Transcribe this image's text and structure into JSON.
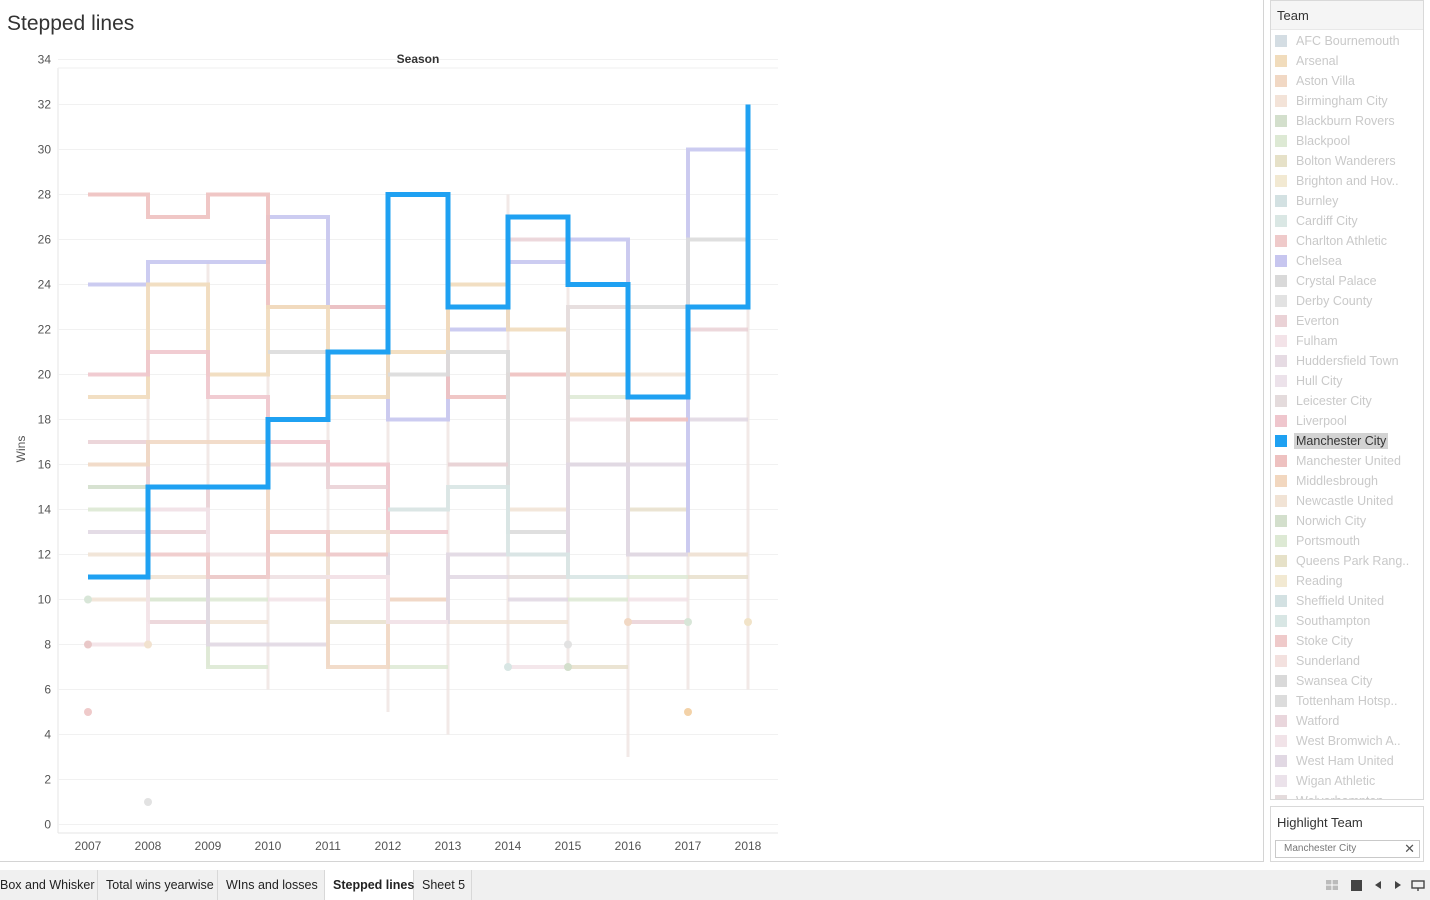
{
  "sheet": {
    "title": "Stepped lines"
  },
  "chart_data": {
    "type": "line",
    "subtype": "stepped",
    "column_header": "Season",
    "ylabel": "Wins",
    "xlabel": "",
    "x": [
      "2007",
      "2008",
      "2009",
      "2010",
      "2011",
      "2012",
      "2013",
      "2014",
      "2015",
      "2016",
      "2017",
      "2018"
    ],
    "y_ticks": [
      0,
      2,
      4,
      6,
      8,
      10,
      12,
      14,
      16,
      18,
      20,
      22,
      24,
      26,
      28,
      30,
      32,
      34
    ],
    "ylim": [
      0,
      34
    ],
    "grid": "horizontal",
    "highlighted_series": "Manchester City",
    "series": [
      {
        "name": "Manchester City",
        "color": "#1fa1f2",
        "highlight": true,
        "values": [
          11,
          15,
          15,
          18,
          21,
          28,
          23,
          27,
          24,
          19,
          23,
          32
        ]
      },
      {
        "name": "Chelsea",
        "color": "#c7c6ef",
        "values": [
          24,
          25,
          25,
          27,
          23,
          18,
          22,
          25,
          26,
          12,
          30,
          null
        ]
      },
      {
        "name": "Manchester United",
        "color": "#eec1c0",
        "values": [
          28,
          27,
          28,
          23,
          23,
          28,
          19,
          20,
          20,
          18,
          null,
          null
        ]
      },
      {
        "name": "Arsenal",
        "color": "#f1dcbc",
        "values": [
          19,
          24,
          20,
          23,
          19,
          21,
          24,
          22,
          20,
          null,
          null,
          null
        ]
      },
      {
        "name": "Liverpool",
        "color": "#efc6cd",
        "values": [
          20,
          21,
          19,
          17,
          16,
          13,
          null,
          null,
          null,
          null,
          null,
          null
        ]
      },
      {
        "name": "Tottenham Hotspur",
        "color": "#dcdcdc",
        "values": [
          null,
          null,
          null,
          21,
          null,
          20,
          21,
          13,
          16,
          23,
          26,
          null
        ]
      },
      {
        "name": "Everton",
        "color": "#ead2d6",
        "values": [
          17,
          13,
          15,
          16,
          15,
          null,
          16,
          null,
          null,
          null,
          null,
          null
        ]
      },
      {
        "name": "Aston Villa",
        "color": "#f1d8c4",
        "values": [
          16,
          17,
          17,
          12,
          7,
          10,
          null,
          null,
          null,
          null,
          null,
          null
        ]
      },
      {
        "name": "Leicester City",
        "color": "#e4dbdc",
        "values": [
          null,
          null,
          null,
          null,
          null,
          null,
          null,
          11,
          23,
          12,
          12,
          null
        ]
      },
      {
        "name": "Newcastle United",
        "color": "#f1e3d5",
        "values": [
          12,
          11,
          null,
          11,
          13,
          9,
          null,
          9,
          null,
          null,
          12,
          null
        ]
      },
      {
        "name": "Blackburn Rovers",
        "color": "#d3dfcc",
        "values": [
          15,
          10,
          11,
          11,
          null,
          null,
          null,
          null,
          null,
          null,
          null,
          null
        ]
      },
      {
        "name": "Portsmouth",
        "color": "#dde9d4",
        "values": [
          14,
          10,
          7,
          null,
          null,
          null,
          null,
          null,
          null,
          null,
          null,
          null
        ]
      },
      {
        "name": "West Ham United",
        "color": "#e1d8e3",
        "values": [
          13,
          14,
          8,
          null,
          12,
          9,
          12,
          12,
          16,
          12,
          null,
          null
        ]
      },
      {
        "name": "Fulham",
        "color": "#f3e3e8",
        "values": [
          8,
          14,
          12,
          11,
          11,
          9,
          null,
          null,
          null,
          null,
          null,
          null
        ]
      },
      {
        "name": "Stoke City",
        "color": "#efcaca",
        "values": [
          null,
          12,
          11,
          13,
          12,
          null,
          null,
          null,
          null,
          null,
          null,
          null
        ]
      },
      {
        "name": "Southampton",
        "color": "#d8e6e4",
        "values": [
          null,
          null,
          null,
          null,
          null,
          14,
          15,
          12,
          11,
          null,
          null,
          null
        ]
      }
    ],
    "markers": [
      {
        "season": "2007",
        "value": 10,
        "color": "#d8e6d8"
      },
      {
        "season": "2007",
        "value": 8,
        "color": "#e9c8c8"
      },
      {
        "season": "2007",
        "value": 5,
        "color": "#efcaca"
      },
      {
        "season": "2008",
        "value": 8,
        "color": "#f2e2cf"
      },
      {
        "season": "2008",
        "value": 1,
        "color": "#e2e2e2"
      },
      {
        "season": "2014",
        "value": 7,
        "color": "#d8e6e4"
      },
      {
        "season": "2015",
        "value": 7,
        "color": "#d3dfcc"
      },
      {
        "season": "2015",
        "value": 8,
        "color": "#e2e2e2"
      },
      {
        "season": "2016",
        "value": 9,
        "color": "#f1d8c4"
      },
      {
        "season": "2017",
        "value": 9,
        "color": "#d8e6d8"
      },
      {
        "season": "2017",
        "value": 5,
        "color": "#f3d2a8"
      },
      {
        "season": "2018",
        "value": 9,
        "color": "#f1e3c8"
      }
    ],
    "noise_segments": [
      {
        "x": [
          "2007",
          "2008"
        ],
        "v": 11
      },
      {
        "x": [
          "2008",
          "2009"
        ],
        "v": 10
      },
      {
        "x": [
          "2009",
          "2010"
        ],
        "v": 10
      },
      {
        "x": [
          "2010",
          "2011"
        ],
        "v": 10
      },
      {
        "x": [
          "2011",
          "2012"
        ],
        "v": 9
      },
      {
        "x": [
          "2012",
          "2013"
        ],
        "v": 10
      },
      {
        "x": [
          "2013",
          "2014"
        ],
        "v": 9
      },
      {
        "x": [
          "2014",
          "2015"
        ],
        "v": 10
      },
      {
        "x": [
          "2015",
          "2016"
        ],
        "v": 10
      },
      {
        "x": [
          "2016",
          "2017"
        ],
        "v": 10
      },
      {
        "x": [
          "2017",
          "2018"
        ],
        "v": 11
      },
      {
        "x": [
          "2008",
          "2009"
        ],
        "v": 9
      },
      {
        "x": [
          "2009",
          "2010"
        ],
        "v": 9
      },
      {
        "x": [
          "2010",
          "2011"
        ],
        "v": 8
      },
      {
        "x": [
          "2012",
          "2013"
        ],
        "v": 7
      },
      {
        "x": [
          "2014",
          "2015"
        ],
        "v": 7
      },
      {
        "x": [
          "2015",
          "2016"
        ],
        "v": 7
      },
      {
        "x": [
          "2016",
          "2017"
        ],
        "v": 9
      },
      {
        "x": [
          "2007",
          "2008"
        ],
        "v": 10
      },
      {
        "x": [
          "2013",
          "2014"
        ],
        "v": 11
      },
      {
        "x": [
          "2016",
          "2017"
        ],
        "v": 11
      },
      {
        "x": [
          "2017",
          "2018"
        ],
        "v": 12
      },
      {
        "x": [
          "2009",
          "2010"
        ],
        "v": 12
      },
      {
        "x": [
          "2011",
          "2012"
        ],
        "v": 11
      },
      {
        "x": [
          "2014",
          "2015"
        ],
        "v": 14
      },
      {
        "x": [
          "2016",
          "2017"
        ],
        "v": 16
      },
      {
        "x": [
          "2013",
          "2014"
        ],
        "v": 16
      },
      {
        "x": [
          "2015",
          "2016"
        ],
        "v": 18
      },
      {
        "x": [
          "2016",
          "2017"
        ],
        "v": 14
      },
      {
        "x": [
          "2017",
          "2018"
        ],
        "v": 22
      },
      {
        "x": [
          "2016",
          "2017"
        ],
        "v": 20
      },
      {
        "x": [
          "2017",
          "2018"
        ],
        "v": 18
      },
      {
        "x": [
          "2015",
          "2016"
        ],
        "v": 19
      },
      {
        "x": [
          "2012",
          "2013"
        ],
        "v": 14
      },
      {
        "x": [
          "2011",
          "2012"
        ],
        "v": 13
      },
      {
        "x": [
          "2014",
          "2015"
        ],
        "v": 26
      }
    ],
    "noise_verticals": [
      {
        "x": "2008",
        "from": 24,
        "to": 9
      },
      {
        "x": "2009",
        "from": 25,
        "to": 7
      },
      {
        "x": "2010",
        "from": 28,
        "to": 6
      },
      {
        "x": "2011",
        "from": 27,
        "to": 7
      },
      {
        "x": "2012",
        "from": 23,
        "to": 5
      },
      {
        "x": "2013",
        "from": 28,
        "to": 4
      },
      {
        "x": "2014",
        "from": 28,
        "to": 7
      },
      {
        "x": "2015",
        "from": 26,
        "to": 7
      },
      {
        "x": "2016",
        "from": 26,
        "to": 3
      },
      {
        "x": "2017",
        "from": 30,
        "to": 6
      },
      {
        "x": "2018",
        "from": 26,
        "to": 6
      }
    ]
  },
  "legend": {
    "title": "Team",
    "items": [
      {
        "label": "AFC Bournemouth",
        "color": "#d4dde3"
      },
      {
        "label": "Arsenal",
        "color": "#f1dcbc"
      },
      {
        "label": "Aston Villa",
        "color": "#f1d8c4"
      },
      {
        "label": "Birmingham City",
        "color": "#f3e3d8"
      },
      {
        "label": "Blackburn Rovers",
        "color": "#d3dfcc"
      },
      {
        "label": "Blackpool",
        "color": "#dde9d4"
      },
      {
        "label": "Bolton Wanderers",
        "color": "#e6e1c8"
      },
      {
        "label": "Brighton and Hov..",
        "color": "#f2e9d2"
      },
      {
        "label": "Burnley",
        "color": "#d3e1e2"
      },
      {
        "label": "Cardiff City",
        "color": "#dae7e4"
      },
      {
        "label": "Charlton Athletic",
        "color": "#efcaca"
      },
      {
        "label": "Chelsea",
        "color": "#c7c6ef"
      },
      {
        "label": "Crystal Palace",
        "color": "#d9d9d9"
      },
      {
        "label": "Derby County",
        "color": "#e2e2e2"
      },
      {
        "label": "Everton",
        "color": "#ead2d6"
      },
      {
        "label": "Fulham",
        "color": "#f3e3e8"
      },
      {
        "label": "Huddersfield Town",
        "color": "#e6dbe3"
      },
      {
        "label": "Hull City",
        "color": "#ece2ea"
      },
      {
        "label": "Leicester City",
        "color": "#e4dbdc"
      },
      {
        "label": "Liverpool",
        "color": "#efc6cd"
      },
      {
        "label": "Manchester City",
        "color": "#1fa1f2",
        "active": true
      },
      {
        "label": "Manchester United",
        "color": "#eec1c0"
      },
      {
        "label": "Middlesbrough",
        "color": "#f2d7bf"
      },
      {
        "label": "Newcastle United",
        "color": "#f1e3d5"
      },
      {
        "label": "Norwich City",
        "color": "#d3dfcc"
      },
      {
        "label": "Portsmouth",
        "color": "#dde9d4"
      },
      {
        "label": "Queens Park Rang..",
        "color": "#e6e1c8"
      },
      {
        "label": "Reading",
        "color": "#f2e9d2"
      },
      {
        "label": "Sheffield United",
        "color": "#d3e1e2"
      },
      {
        "label": "Southampton",
        "color": "#d8e6e4"
      },
      {
        "label": "Stoke City",
        "color": "#efcaca"
      },
      {
        "label": "Sunderland",
        "color": "#f3e1df"
      },
      {
        "label": "Swansea City",
        "color": "#d9d9d9"
      },
      {
        "label": "Tottenham Hotsp..",
        "color": "#dcdcdc"
      },
      {
        "label": "Watford",
        "color": "#e9d6dc"
      },
      {
        "label": "West Bromwich A..",
        "color": "#f1e3e8"
      },
      {
        "label": "West Ham United",
        "color": "#e1d8e3"
      },
      {
        "label": "Wigan Athletic",
        "color": "#ebe2ea"
      },
      {
        "label": "Wolverhampton",
        "color": "#e4dbdc"
      }
    ]
  },
  "highlight": {
    "title": "Highlight Team",
    "value": "Manchester City",
    "clear_icon": "x-icon"
  },
  "tabs": [
    {
      "label": "Box and Whisker"
    },
    {
      "label": "Total wins yearwise"
    },
    {
      "label": "WIns and losses"
    },
    {
      "label": "Stepped lines",
      "active": true
    },
    {
      "label": "Sheet 5"
    }
  ],
  "nav_icons": [
    "grid-view-icon",
    "filmstrip-icon",
    "previous-sheet-icon",
    "next-sheet-icon",
    "presentation-icon"
  ]
}
